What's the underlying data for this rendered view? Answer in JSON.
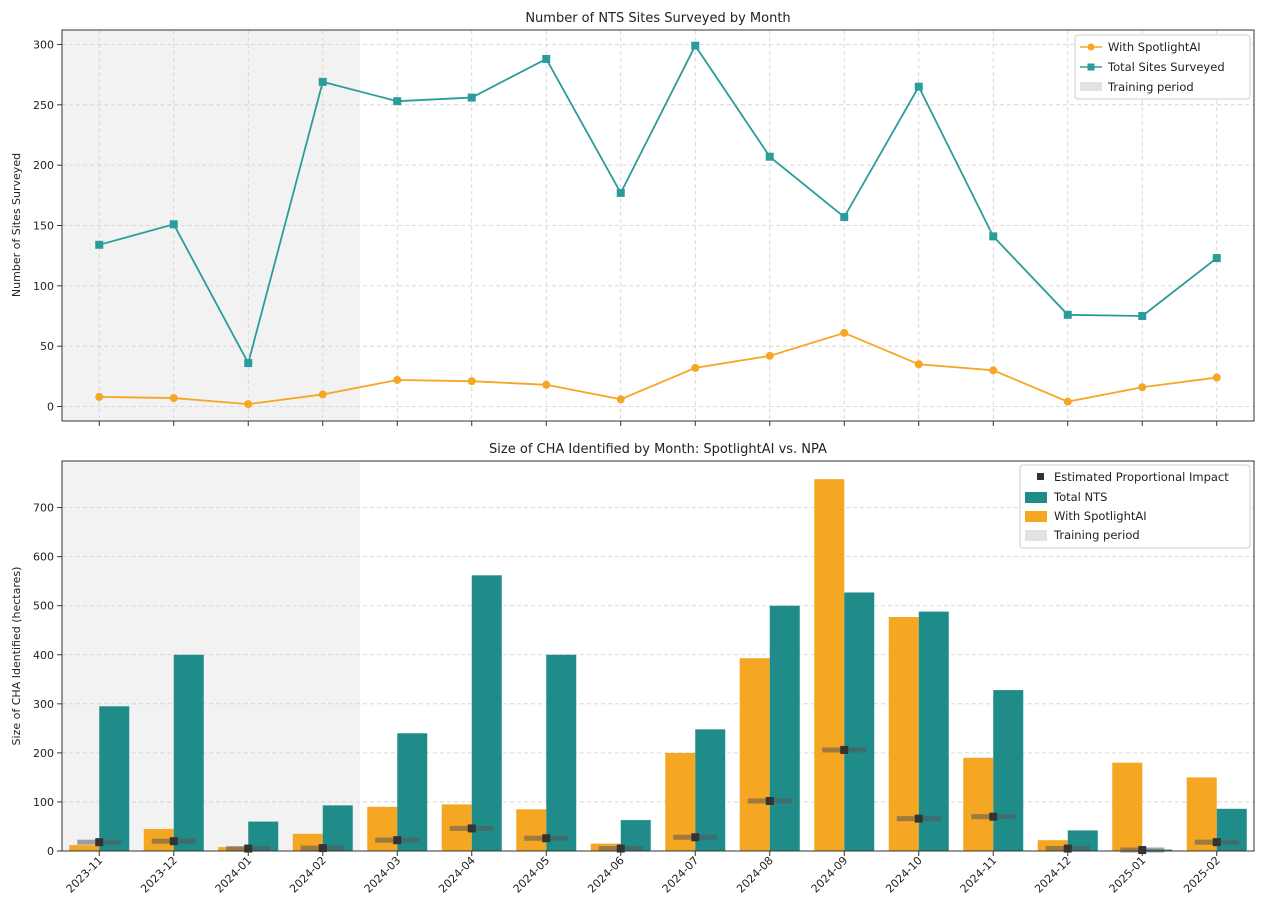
{
  "chart_data": [
    {
      "type": "line",
      "title": "Number of NTS Sites Surveyed by Month",
      "xlabel": "",
      "ylabel": "Number of Sites Surveyed",
      "categories": [
        "2023-11",
        "2023-12",
        "2024-01",
        "2024-02",
        "2024-03",
        "2024-04",
        "2024-05",
        "2024-06",
        "2024-07",
        "2024-08",
        "2024-09",
        "2024-10",
        "2024-11",
        "2024-12",
        "2025-01",
        "2025-02"
      ],
      "ylim": [
        -12,
        312
      ],
      "yticks": [
        0,
        50,
        100,
        150,
        200,
        250,
        300
      ],
      "grid": true,
      "legend_position": "top-right",
      "shaded_region": {
        "label": "Training period",
        "from": "2023-11",
        "to": "2024-02"
      },
      "series": [
        {
          "name": "With SpotlightAI",
          "marker": "circle",
          "color": "#f5a623",
          "values": [
            8,
            7,
            2,
            10,
            22,
            21,
            18,
            6,
            32,
            42,
            61,
            35,
            30,
            4,
            16,
            24
          ]
        },
        {
          "name": "Total Sites Surveyed",
          "marker": "square",
          "color": "#2a9d9a",
          "values": [
            134,
            151,
            36,
            269,
            253,
            256,
            288,
            177,
            299,
            207,
            157,
            265,
            141,
            76,
            75,
            123
          ]
        }
      ]
    },
    {
      "type": "bar",
      "title": "Size of CHA Identified by Month: SpotlightAI vs. NPA",
      "xlabel": "",
      "ylabel": "Size of CHA Identified (hectares)",
      "categories": [
        "2023-11",
        "2023-12",
        "2024-01",
        "2024-02",
        "2024-03",
        "2024-04",
        "2024-05",
        "2024-06",
        "2024-07",
        "2024-08",
        "2024-09",
        "2024-10",
        "2024-11",
        "2024-12",
        "2025-01",
        "2025-02"
      ],
      "ylim": [
        0,
        795
      ],
      "yticks": [
        0,
        100,
        200,
        300,
        400,
        500,
        600,
        700
      ],
      "grid": true,
      "legend_position": "top-right",
      "shaded_region": {
        "label": "Training period",
        "from": "2023-11",
        "to": "2024-02"
      },
      "series": [
        {
          "name": "With SpotlightAI",
          "color": "#f5a623",
          "values": [
            12,
            45,
            8,
            35,
            90,
            95,
            85,
            15,
            200,
            393,
            758,
            477,
            190,
            22,
            180,
            150
          ]
        },
        {
          "name": "Total NTS",
          "color": "#1f8c89",
          "values": [
            295,
            400,
            60,
            93,
            240,
            562,
            400,
            63,
            248,
            500,
            527,
            488,
            328,
            42,
            3,
            86
          ]
        },
        {
          "name": "Estimated Proportional Impact",
          "marker": "square",
          "color": "#333333",
          "values": [
            18,
            20,
            5,
            6,
            22,
            46,
            26,
            5,
            28,
            102,
            206,
            66,
            70,
            5,
            2,
            18
          ]
        }
      ]
    }
  ],
  "colors": {
    "orange": "#f5a623",
    "teal_line": "#2a9d9a",
    "teal_bar": "#1f8c89",
    "marker": "#333333",
    "shade": "#eeeeee"
  }
}
